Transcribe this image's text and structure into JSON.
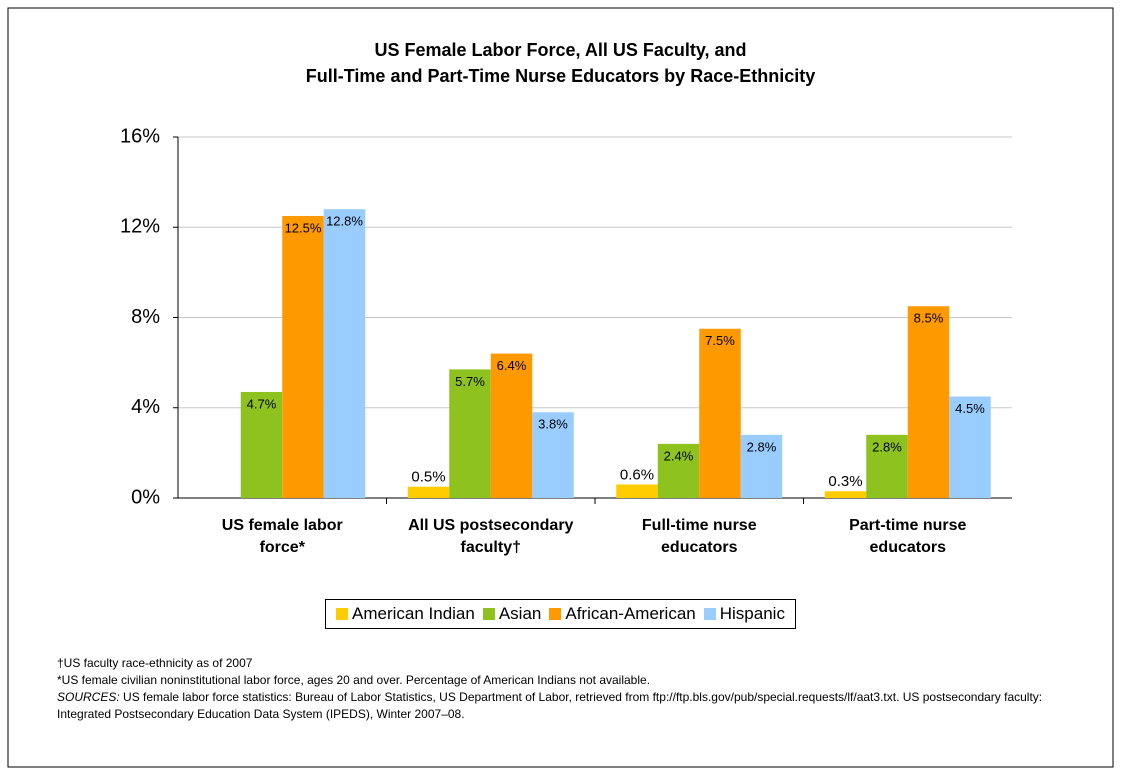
{
  "chart_data": {
    "type": "bar",
    "title": [
      "US Female Labor Force, All US Faculty, and",
      "Full-Time and Part-Time Nurse Educators by Race-Ethnicity"
    ],
    "categories": [
      "US female labor force*",
      "All US postsecondary faculty†",
      "Full-time nurse educators",
      "Part-time nurse educators"
    ],
    "series": [
      {
        "name": "American Indian",
        "color": "#ffcc00",
        "values": [
          null,
          0.5,
          0.6,
          0.3
        ],
        "value_labels": [
          null,
          "0.5%",
          "0.6%",
          "0.3%"
        ]
      },
      {
        "name": "Asian",
        "color": "#8dc21f",
        "values": [
          4.7,
          5.7,
          2.4,
          2.8
        ],
        "value_labels": [
          "4.7%",
          "5.7%",
          "2.4%",
          "2.8%"
        ]
      },
      {
        "name": "African-American",
        "color": "#ff9900",
        "values": [
          12.5,
          6.4,
          7.5,
          8.5
        ],
        "value_labels": [
          "12.5%",
          "6.4%",
          "7.5%",
          "8.5%"
        ]
      },
      {
        "name": "Hispanic",
        "color": "#99ccff",
        "values": [
          12.8,
          3.8,
          2.8,
          4.5
        ],
        "value_labels": [
          "12.8%",
          "3.8%",
          "2.8%",
          "4.5%"
        ]
      }
    ],
    "ylim": [
      0,
      16
    ],
    "yticks": [
      {
        "value": 0,
        "label": "0%"
      },
      {
        "value": 4,
        "label": "4%"
      },
      {
        "value": 8,
        "label": "8%"
      },
      {
        "value": 12,
        "label": "12%"
      },
      {
        "value": 16,
        "label": "16%"
      }
    ],
    "grid": true,
    "legend": "bottom",
    "notes": [
      "†US faculty race-ethnicity as of 2007",
      "*US female civilian noninstitutional labor force, ages 20 and over. Percentage of American Indians not available."
    ],
    "sources_label": "SOURCES:",
    "sources": "US female labor force statistics: Bureau of Labor Statistics, US Department of Labor, retrieved from ftp://ftp.bls.gov/pub/special.requests/lf/aat3.txt. US postsecondary faculty: Integrated Postsecondary Education Data System (IPEDS), Winter 2007–08."
  }
}
